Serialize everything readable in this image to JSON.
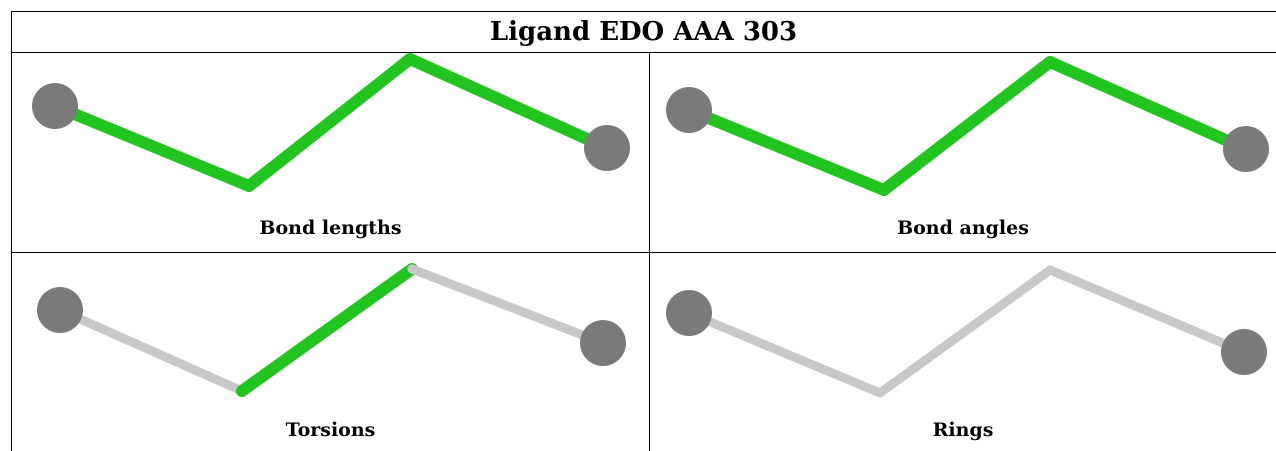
{
  "title": "Ligand EDO AAA 303",
  "colors": {
    "validated_bond": "#22c51f",
    "plain_bond": "#c8c8c8",
    "atom": "#7a7a7a"
  },
  "panels": [
    {
      "caption": "Bond lengths",
      "bonds": [
        "highlight",
        "highlight",
        "highlight"
      ]
    },
    {
      "caption": "Bond angles",
      "bonds": [
        "highlight",
        "highlight",
        "highlight"
      ]
    },
    {
      "caption": "Torsions",
      "bonds": [
        "plain",
        "highlight",
        "plain"
      ]
    },
    {
      "caption": "Rings",
      "bonds": [
        "plain",
        "plain",
        "plain"
      ]
    }
  ]
}
